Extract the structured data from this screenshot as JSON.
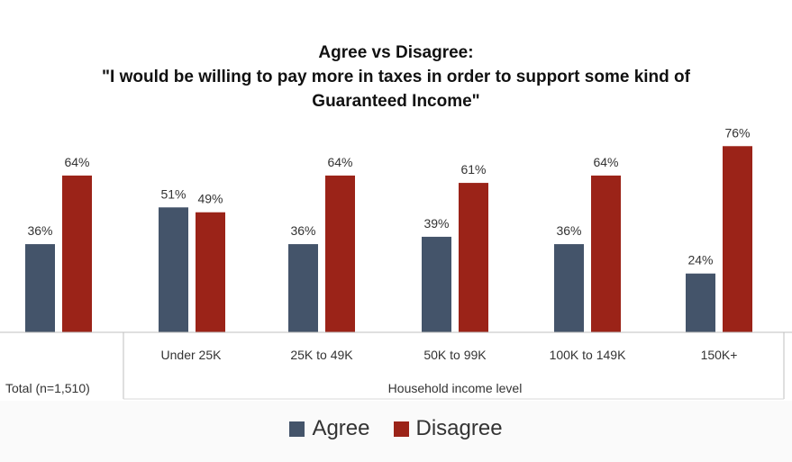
{
  "chart_data": {
    "type": "bar",
    "title": "Agree vs Disagree:",
    "subtitle_line1": "\"I would be willing to pay more in taxes in order to support some kind of",
    "subtitle_line2": "Guaranteed Income\"",
    "categories": [
      "Total (n=1,510)",
      "Under 25K",
      "25K to 49K",
      "50K to 99K",
      "100K to 149K",
      "150K+"
    ],
    "group_label": "Household income level",
    "series": [
      {
        "name": "Agree",
        "color": "#44546a",
        "values": [
          36,
          51,
          36,
          39,
          36,
          24
        ]
      },
      {
        "name": "Disagree",
        "color": "#9b2318",
        "values": [
          64,
          49,
          64,
          61,
          64,
          76
        ]
      }
    ],
    "data_labels": [
      [
        "36%",
        "51%",
        "36%",
        "39%",
        "36%",
        "24%"
      ],
      [
        "64%",
        "49%",
        "64%",
        "61%",
        "64%",
        "76%"
      ]
    ],
    "ylim": [
      0,
      100
    ],
    "grid": false,
    "legend_position": "bottom"
  }
}
